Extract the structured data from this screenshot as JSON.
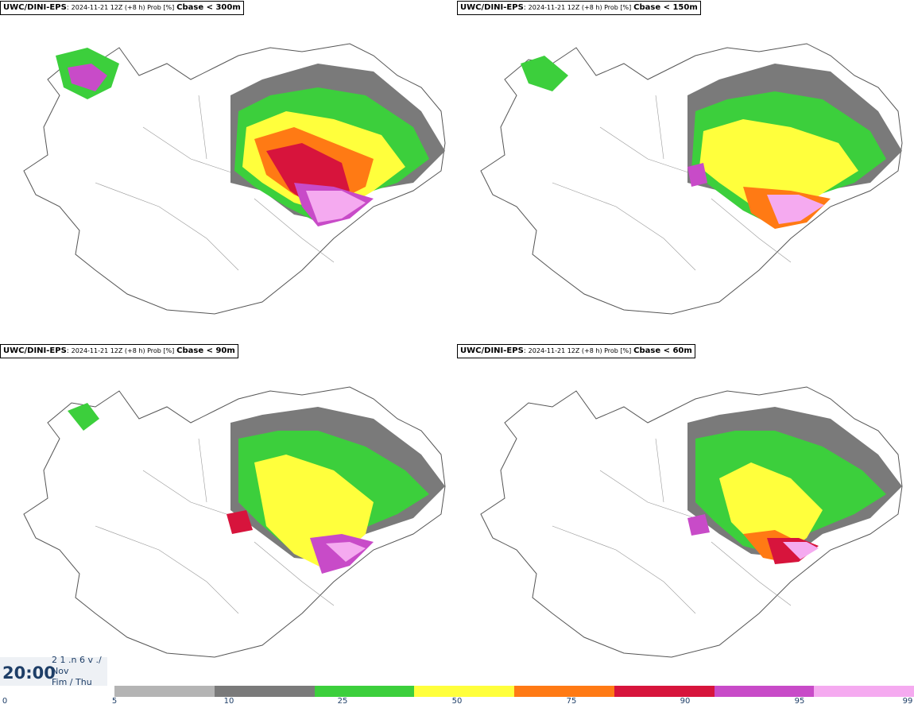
{
  "panels": [
    {
      "model": "UWC/DINI-EPS",
      "meta": "2024-11-21 12Z (+8 h) Prob [%]",
      "param": "Cbase < 300m"
    },
    {
      "model": "UWC/DINI-EPS",
      "meta": "2024-11-21 12Z (+8 h) Prob [%]",
      "param": "Cbase < 150m"
    },
    {
      "model": "UWC/DINI-EPS",
      "meta": "2024-11-21 12Z (+8 h) Prob [%]",
      "param": "Cbase < 90m"
    },
    {
      "model": "UWC/DINI-EPS",
      "meta": "2024-11-21 12Z (+8 h) Prob [%]",
      "param": "Cbase < 60m"
    }
  ],
  "time": {
    "clock": "20:00",
    "line1": "2 1 .n 6 v ./",
    "line2": "Nov",
    "line3": "Fim / Thu"
  },
  "legend": {
    "labels": [
      "0",
      "5",
      "10",
      "25",
      "50",
      "75",
      "90",
      "95",
      "99"
    ],
    "colors": [
      "#b4b4b4",
      "#7a7a7a",
      "#3ccf3c",
      "#ffff3c",
      "#ff7a14",
      "#d7143c",
      "#c84bc8",
      "#f5aaf0"
    ]
  }
}
